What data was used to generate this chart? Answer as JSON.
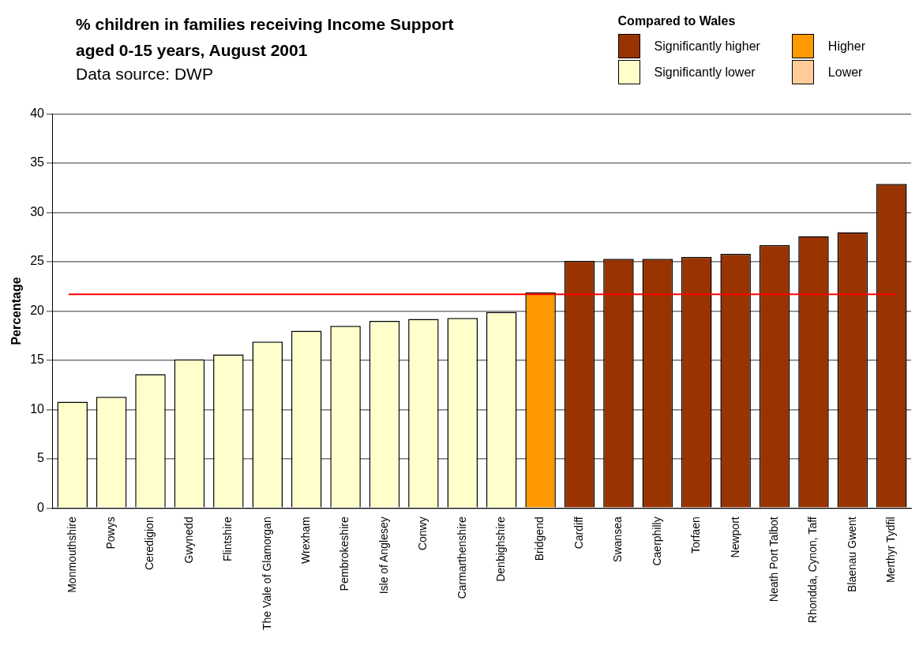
{
  "chart_data": {
    "type": "bar",
    "title": "% children in families receiving Income Support\naged 0-15 years, August 2001",
    "subtitle": "Data source: DWP",
    "ylabel": "Percentage",
    "legend_title": "Compared to Wales",
    "legend": "top right",
    "stacked": true,
    "grid": "y",
    "categories": [
      "Monmouthshire",
      "Powys",
      "Ceredigion",
      "Gwynedd",
      "Flintshire",
      "The Vale of Glamorgan",
      "Wrexham",
      "Pembrokeshire",
      "Isle of Anglesey",
      "Conwy",
      "Carmarthenshire",
      "Denbighshire",
      "Bridgend",
      "Cardiff",
      "Swansea",
      "Caerphilly",
      "Torfaen",
      "Newport",
      "Neath Port Talbot",
      "Rhondda, Cynon, Taff",
      "Blaenau Gwent",
      "Merthyr Tydfil"
    ],
    "series": [
      {
        "name": "Significantly higher",
        "color": "#993300",
        "values": [
          null,
          null,
          null,
          null,
          null,
          null,
          null,
          null,
          null,
          null,
          null,
          null,
          null,
          25.1,
          25.3,
          25.3,
          25.5,
          25.8,
          26.7,
          27.6,
          28.0,
          32.9
        ]
      },
      {
        "name": "Higher",
        "color": "#ff9900",
        "values": [
          null,
          null,
          null,
          null,
          null,
          null,
          null,
          null,
          null,
          null,
          null,
          null,
          21.9,
          null,
          null,
          null,
          null,
          null,
          null,
          null,
          null,
          null
        ]
      },
      {
        "name": "Significantly lower",
        "color": "#ffffcc",
        "values": [
          10.8,
          11.3,
          13.6,
          15.1,
          15.6,
          16.9,
          18.0,
          18.5,
          19.0,
          19.2,
          19.3,
          19.9,
          null,
          null,
          null,
          null,
          null,
          null,
          null,
          null,
          null,
          null
        ]
      },
      {
        "name": "Lower",
        "color": "#ffcc99",
        "values": [
          null,
          null,
          null,
          null,
          null,
          null,
          null,
          null,
          null,
          null,
          null,
          null,
          null,
          null,
          null,
          null,
          null,
          null,
          null,
          null,
          null,
          null
        ]
      }
    ],
    "ylim": [
      0,
      40
    ],
    "yticks": [
      0,
      5,
      10,
      15,
      20,
      25,
      30,
      35,
      40
    ],
    "ref_lines": [
      {
        "axis": "y",
        "value": 21.7,
        "color": "#ff0000"
      }
    ]
  }
}
